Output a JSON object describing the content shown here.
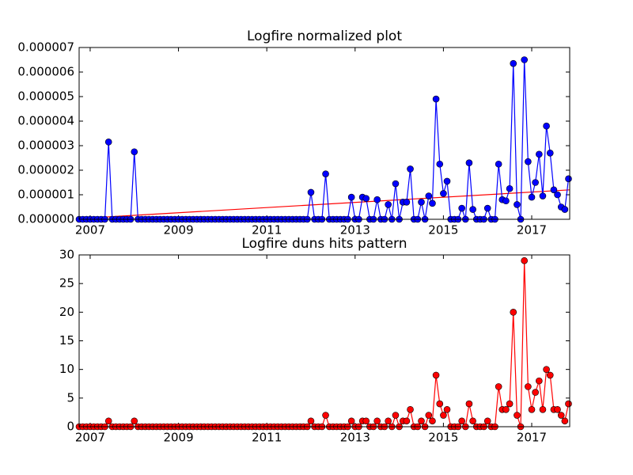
{
  "chart_data": [
    {
      "type": "line",
      "title": "Logfire normalized plot",
      "x": [
        2006.75,
        2006.833,
        2006.917,
        2007,
        2007.083,
        2007.167,
        2007.25,
        2007.333,
        2007.417,
        2007.5,
        2007.583,
        2007.667,
        2007.75,
        2007.833,
        2007.917,
        2008,
        2008.083,
        2008.167,
        2008.25,
        2008.333,
        2008.417,
        2008.5,
        2008.583,
        2008.667,
        2008.75,
        2008.833,
        2008.917,
        2009,
        2009.083,
        2009.167,
        2009.25,
        2009.333,
        2009.417,
        2009.5,
        2009.583,
        2009.667,
        2009.75,
        2009.833,
        2009.917,
        2010,
        2010.083,
        2010.167,
        2010.25,
        2010.333,
        2010.417,
        2010.5,
        2010.583,
        2010.667,
        2010.75,
        2010.833,
        2010.917,
        2011,
        2011.083,
        2011.167,
        2011.25,
        2011.333,
        2011.417,
        2011.5,
        2011.583,
        2011.667,
        2011.75,
        2011.833,
        2011.917,
        2012,
        2012.083,
        2012.167,
        2012.25,
        2012.333,
        2012.417,
        2012.5,
        2012.583,
        2012.667,
        2012.75,
        2012.833,
        2012.917,
        2013,
        2013.083,
        2013.167,
        2013.25,
        2013.333,
        2013.417,
        2013.5,
        2013.583,
        2013.667,
        2013.75,
        2013.833,
        2013.917,
        2014,
        2014.083,
        2014.167,
        2014.25,
        2014.333,
        2014.417,
        2014.5,
        2014.583,
        2014.667,
        2014.75,
        2014.833,
        2014.917,
        2015,
        2015.083,
        2015.167,
        2015.25,
        2015.333,
        2015.417,
        2015.5,
        2015.583,
        2015.667,
        2015.75,
        2015.833,
        2015.917,
        2016,
        2016.083,
        2016.167,
        2016.25,
        2016.333,
        2016.417,
        2016.5,
        2016.583,
        2016.667,
        2016.75,
        2016.833,
        2016.917,
        2017,
        2017.083,
        2017.167,
        2017.25,
        2017.333,
        2017.417,
        2017.5,
        2017.583,
        2017.667,
        2017.75,
        2017.833
      ],
      "series": [
        {
          "color": "#0000ff",
          "values": [
            0,
            0,
            0,
            0,
            0,
            0,
            0,
            0,
            3.15e-06,
            0,
            0,
            0,
            0,
            0,
            0,
            2.75e-06,
            0,
            0,
            0,
            0,
            0,
            0,
            0,
            0,
            0,
            0,
            0,
            0,
            0,
            0,
            0,
            0,
            0,
            0,
            0,
            0,
            0,
            0,
            0,
            0,
            0,
            0,
            0,
            0,
            0,
            0,
            0,
            0,
            0,
            0,
            0,
            0,
            0,
            0,
            0,
            0,
            0,
            0,
            0,
            0,
            0,
            0,
            0,
            1.1e-06,
            0,
            0,
            0,
            1.85e-06,
            0,
            0,
            0,
            0,
            0,
            0,
            9e-07,
            0,
            0,
            9e-07,
            8.5e-07,
            0,
            0,
            8e-07,
            0,
            0,
            6e-07,
            0,
            1.45e-06,
            0,
            7e-07,
            7e-07,
            2.05e-06,
            0,
            0,
            7e-07,
            0,
            9.5e-07,
            6.5e-07,
            4.9e-06,
            2.25e-06,
            1.05e-06,
            1.55e-06,
            0,
            0,
            0,
            4.5e-07,
            0,
            2.3e-06,
            4e-07,
            0,
            0,
            0,
            4.5e-07,
            0,
            0,
            2.25e-06,
            8e-07,
            7.5e-07,
            1.25e-06,
            6.35e-06,
            6e-07,
            0,
            6.5e-06,
            2.35e-06,
            9e-07,
            1.5e-06,
            2.65e-06,
            9.5e-07,
            3.8e-06,
            2.7e-06,
            1.2e-06,
            1e-06,
            5e-07,
            4e-07,
            1.65e-06
          ]
        }
      ],
      "trend": {
        "color": "#ff0000",
        "x": [
          2006.75,
          2017.86
        ],
        "values": [
          3e-08,
          1.2e-06
        ]
      },
      "xlim": [
        2006.75,
        2017.86
      ],
      "xticks": [
        2007,
        2009,
        2011,
        2013,
        2015,
        2017
      ],
      "ylim": [
        0,
        7e-06
      ],
      "yticks": [
        {
          "value": 0,
          "label": "0.000000"
        },
        {
          "value": 1e-06,
          "label": "0.000001"
        },
        {
          "value": 2e-06,
          "label": "0.000002"
        },
        {
          "value": 3e-06,
          "label": "0.000003"
        },
        {
          "value": 4e-06,
          "label": "0.000004"
        },
        {
          "value": 5e-06,
          "label": "0.000005"
        },
        {
          "value": 6e-06,
          "label": "0.000006"
        },
        {
          "value": 7e-06,
          "label": "0.000007"
        }
      ]
    },
    {
      "type": "line",
      "title": "Logfire duns hits pattern",
      "x": [
        2006.75,
        2006.833,
        2006.917,
        2007,
        2007.083,
        2007.167,
        2007.25,
        2007.333,
        2007.417,
        2007.5,
        2007.583,
        2007.667,
        2007.75,
        2007.833,
        2007.917,
        2008,
        2008.083,
        2008.167,
        2008.25,
        2008.333,
        2008.417,
        2008.5,
        2008.583,
        2008.667,
        2008.75,
        2008.833,
        2008.917,
        2009,
        2009.083,
        2009.167,
        2009.25,
        2009.333,
        2009.417,
        2009.5,
        2009.583,
        2009.667,
        2009.75,
        2009.833,
        2009.917,
        2010,
        2010.083,
        2010.167,
        2010.25,
        2010.333,
        2010.417,
        2010.5,
        2010.583,
        2010.667,
        2010.75,
        2010.833,
        2010.917,
        2011,
        2011.083,
        2011.167,
        2011.25,
        2011.333,
        2011.417,
        2011.5,
        2011.583,
        2011.667,
        2011.75,
        2011.833,
        2011.917,
        2012,
        2012.083,
        2012.167,
        2012.25,
        2012.333,
        2012.417,
        2012.5,
        2012.583,
        2012.667,
        2012.75,
        2012.833,
        2012.917,
        2013,
        2013.083,
        2013.167,
        2013.25,
        2013.333,
        2013.417,
        2013.5,
        2013.583,
        2013.667,
        2013.75,
        2013.833,
        2013.917,
        2014,
        2014.083,
        2014.167,
        2014.25,
        2014.333,
        2014.417,
        2014.5,
        2014.583,
        2014.667,
        2014.75,
        2014.833,
        2014.917,
        2015,
        2015.083,
        2015.167,
        2015.25,
        2015.333,
        2015.417,
        2015.5,
        2015.583,
        2015.667,
        2015.75,
        2015.833,
        2015.917,
        2016,
        2016.083,
        2016.167,
        2016.25,
        2016.333,
        2016.417,
        2016.5,
        2016.583,
        2016.667,
        2016.75,
        2016.833,
        2016.917,
        2017,
        2017.083,
        2017.167,
        2017.25,
        2017.333,
        2017.417,
        2017.5,
        2017.583,
        2017.667,
        2017.75,
        2017.833
      ],
      "series": [
        {
          "color": "#ff0000",
          "values": [
            0,
            0,
            0,
            0,
            0,
            0,
            0,
            0,
            1,
            0,
            0,
            0,
            0,
            0,
            0,
            1,
            0,
            0,
            0,
            0,
            0,
            0,
            0,
            0,
            0,
            0,
            0,
            0,
            0,
            0,
            0,
            0,
            0,
            0,
            0,
            0,
            0,
            0,
            0,
            0,
            0,
            0,
            0,
            0,
            0,
            0,
            0,
            0,
            0,
            0,
            0,
            0,
            0,
            0,
            0,
            0,
            0,
            0,
            0,
            0,
            0,
            0,
            0,
            1,
            0,
            0,
            0,
            2,
            0,
            0,
            0,
            0,
            0,
            0,
            1,
            0,
            0,
            1,
            1,
            0,
            0,
            1,
            0,
            0,
            1,
            0,
            2,
            0,
            1,
            1,
            3,
            0,
            0,
            1,
            0,
            2,
            1,
            9,
            4,
            2,
            3,
            0,
            0,
            0,
            1,
            0,
            4,
            1,
            0,
            0,
            0,
            1,
            0,
            0,
            7,
            3,
            3,
            4,
            20,
            2,
            0,
            29,
            7,
            3,
            6,
            8,
            3,
            10,
            9,
            3,
            3,
            2,
            1,
            4
          ]
        }
      ],
      "xlim": [
        2006.75,
        2017.86
      ],
      "xticks": [
        2007,
        2009,
        2011,
        2013,
        2015,
        2017
      ],
      "ylim": [
        0,
        30
      ],
      "yticks": [
        0,
        5,
        10,
        15,
        20,
        25,
        30
      ]
    }
  ]
}
